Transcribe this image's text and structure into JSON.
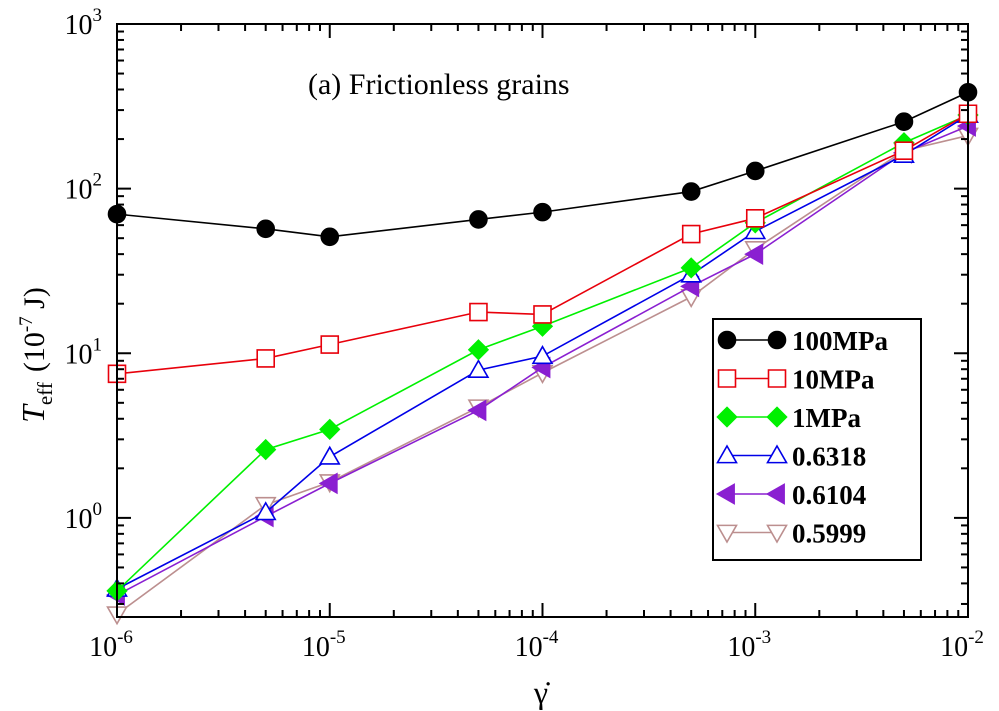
{
  "chart_data": {
    "type": "line",
    "title": "",
    "annotation": "(a) Frictionless grains",
    "xlabel": "γ̇",
    "ylabel": {
      "symbol": "T",
      "subscript": "eff",
      "unit_open": "(10",
      "unit_exp": "-7",
      "unit_close": " J)"
    },
    "xscale": "log",
    "yscale": "log",
    "xlim": [
      1e-06,
      0.01
    ],
    "ylim": [
      0.25,
      1000
    ],
    "x_ticks": [
      {
        "value": 1e-06,
        "base": "10",
        "exp": "-6"
      },
      {
        "value": 1e-05,
        "base": "10",
        "exp": "-5"
      },
      {
        "value": 0.0001,
        "base": "10",
        "exp": "-4"
      },
      {
        "value": 0.001,
        "base": "10",
        "exp": "-3"
      },
      {
        "value": 0.01,
        "base": "10",
        "exp": "-2"
      }
    ],
    "y_ticks": [
      {
        "value": 1,
        "base": "10",
        "exp": "0"
      },
      {
        "value": 10,
        "base": "10",
        "exp": "1"
      },
      {
        "value": 100,
        "base": "10",
        "exp": "2"
      },
      {
        "value": 1000,
        "base": "10",
        "exp": "3"
      }
    ],
    "legend_position": "lower-right",
    "grid": false,
    "x": [
      1e-06,
      5e-06,
      1e-05,
      5e-05,
      0.0001,
      0.0005,
      0.001,
      0.005,
      0.01
    ],
    "series": [
      {
        "name": "100MPa",
        "color": "#000000",
        "marker": "circle",
        "filled": true,
        "values": [
          70,
          57,
          51,
          65,
          72,
          96,
          128,
          255,
          385
        ]
      },
      {
        "name": "10MPa",
        "color": "#e8000b",
        "marker": "square",
        "filled": false,
        "values": [
          7.5,
          9.3,
          11.3,
          17.8,
          17.2,
          53,
          66,
          170,
          285
        ]
      },
      {
        "name": "1MPa",
        "color": "#00f000",
        "marker": "diamond",
        "filled": true,
        "values": [
          0.36,
          2.6,
          3.45,
          10.5,
          14.6,
          33,
          62,
          190,
          280
        ]
      },
      {
        "name": "0.6318",
        "color": "#0000e8",
        "marker": "triangle-up",
        "filled": false,
        "values": [
          0.37,
          1.08,
          2.35,
          7.9,
          9.6,
          30,
          55,
          160,
          280
        ]
      },
      {
        "name": "0.6104",
        "color": "#8a1fd1",
        "marker": "triangle-left",
        "filled": true,
        "values": [
          0.34,
          1.02,
          1.62,
          4.5,
          8.2,
          25.5,
          40,
          165,
          240
        ]
      },
      {
        "name": "0.5999",
        "color": "#bc8f8f",
        "marker": "triangle-down",
        "filled": false,
        "values": [
          0.26,
          1.2,
          1.65,
          4.7,
          7.6,
          22,
          43,
          170,
          210
        ]
      }
    ]
  }
}
